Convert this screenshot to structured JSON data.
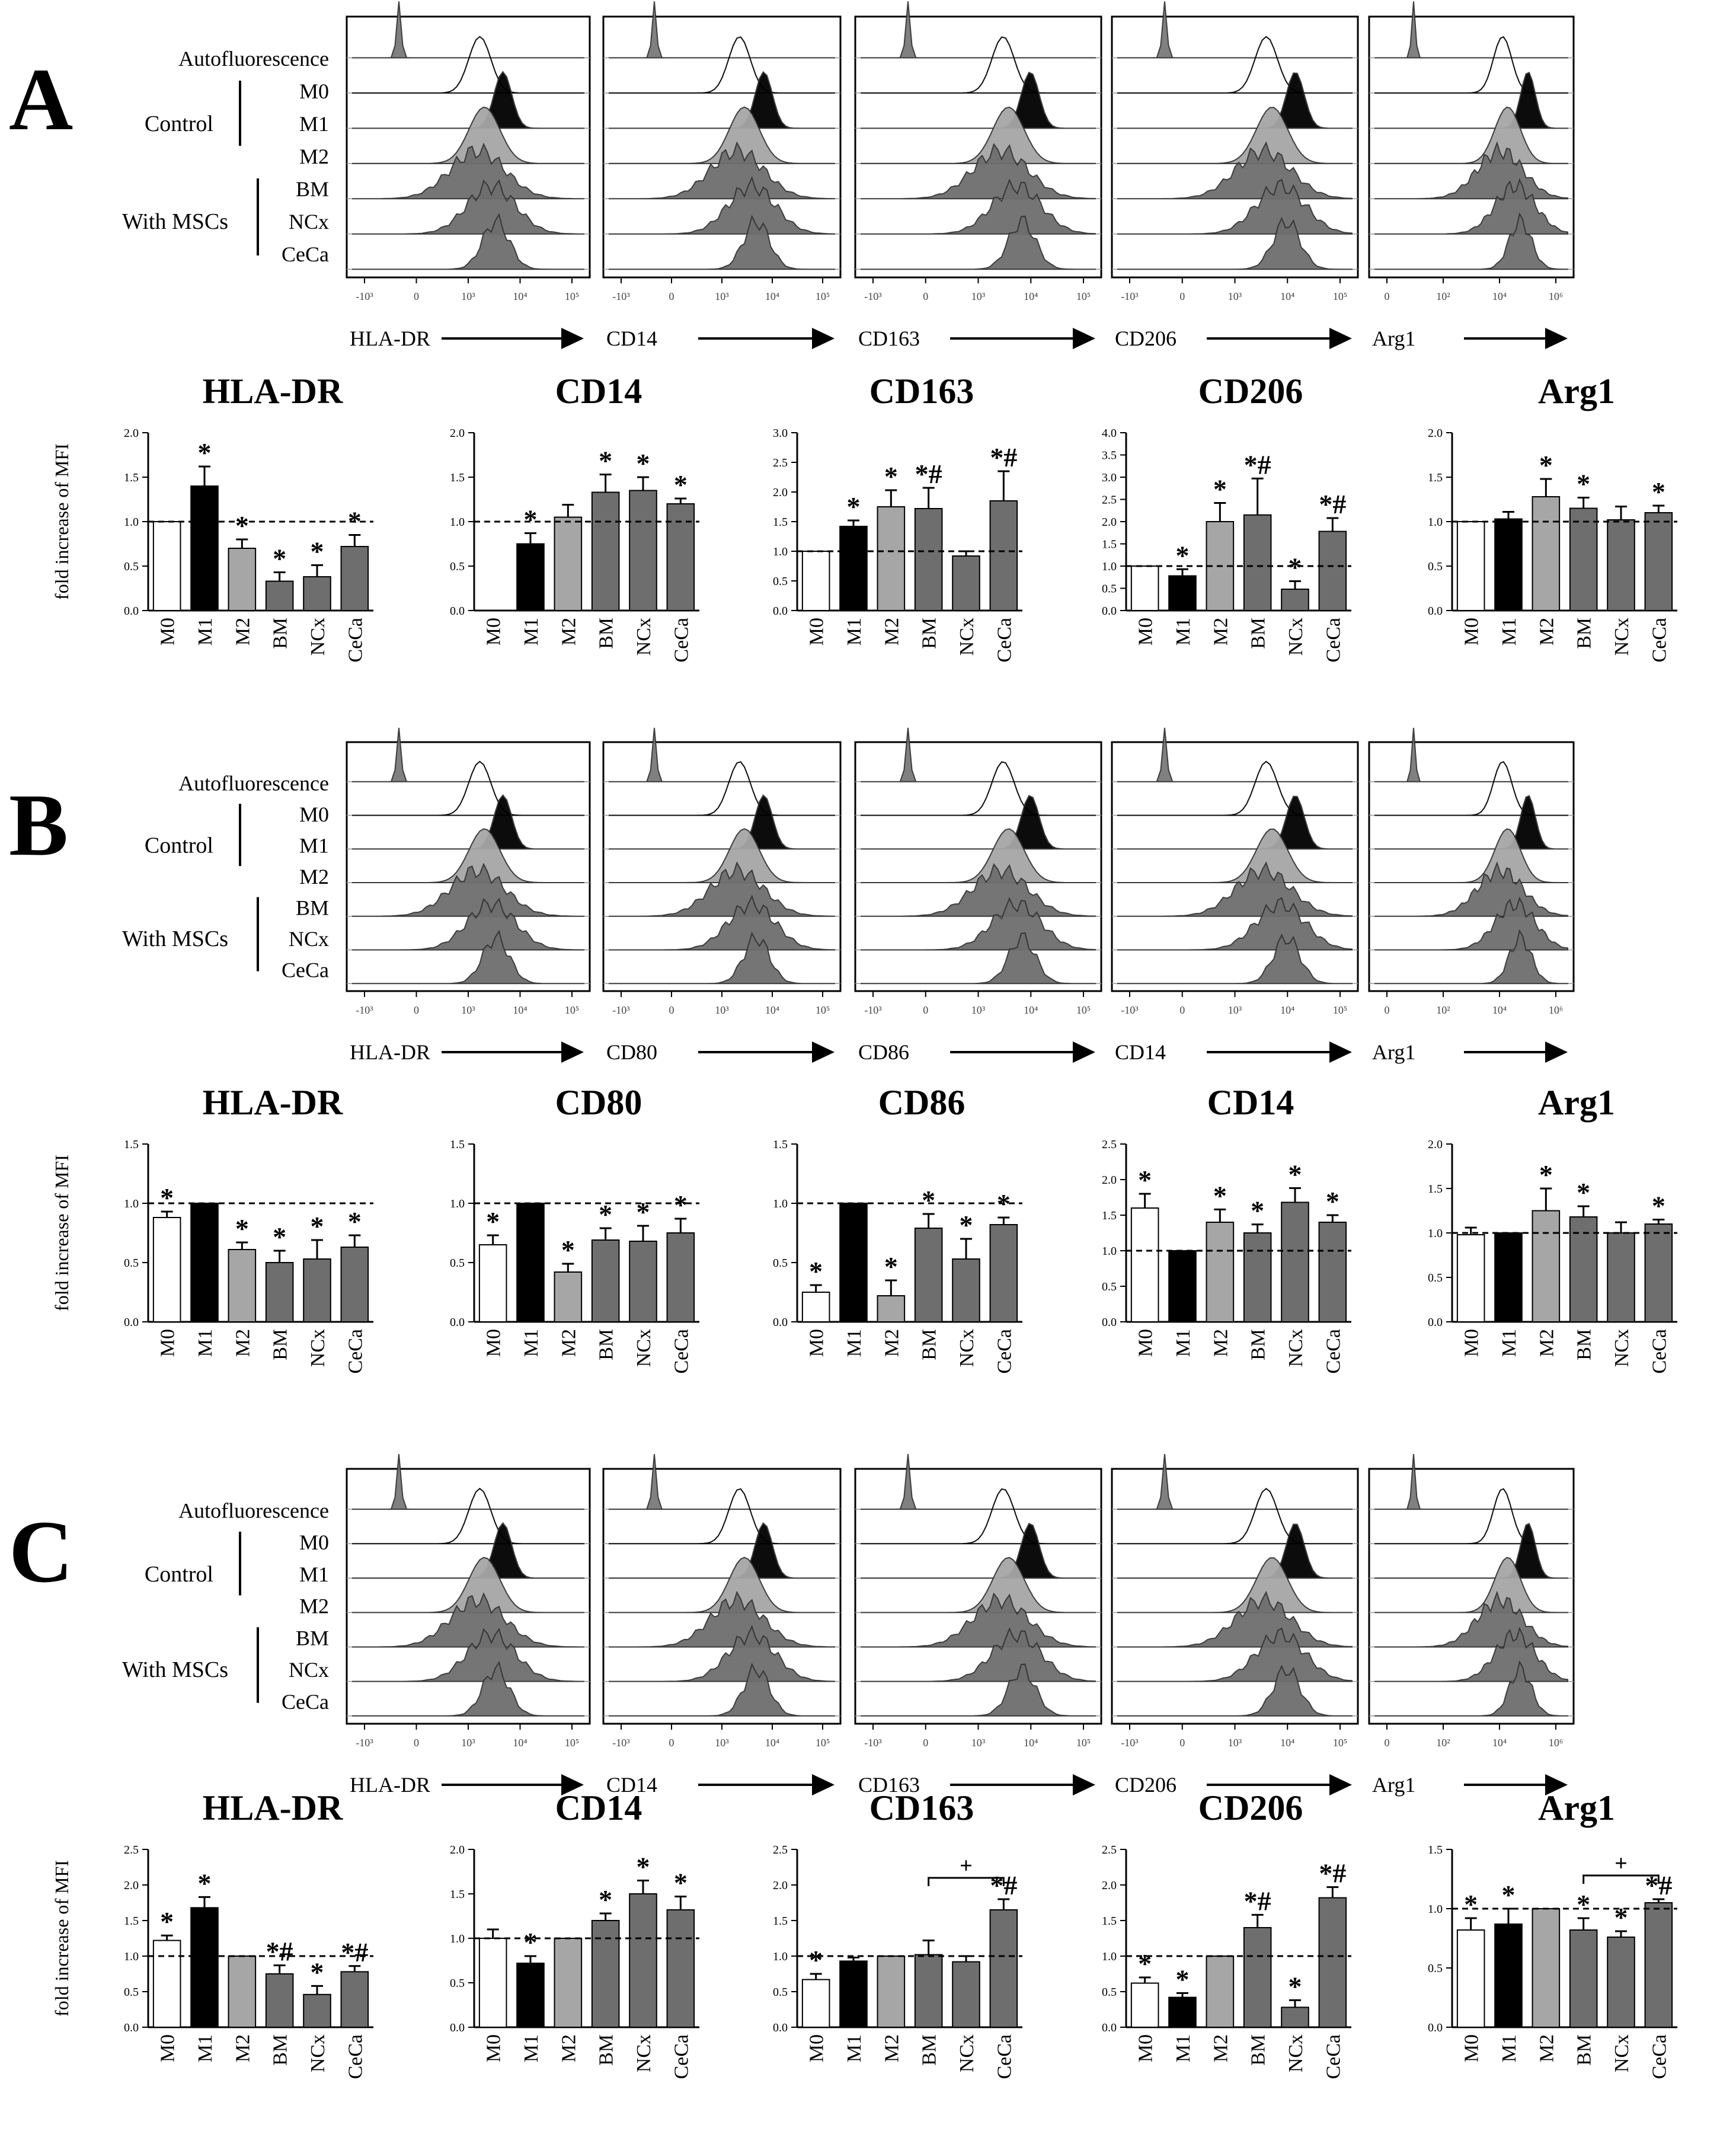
{
  "colors": {
    "M0": "#ffffff",
    "M1": "#000000",
    "M2": "#a6a6a6",
    "MSC": "#6e6e6e",
    "autofluorescence": "#7a7a7a",
    "axis": "#000000",
    "baseline": "#000000"
  },
  "panels": [
    {
      "label": "A",
      "row_labels": {
        "autofluorescence": "Autofluorescence",
        "control": "Control",
        "with_mscs": "With MSCs",
        "m0": "M0",
        "m1": "M1",
        "m2": "M2",
        "bm": "BM",
        "ncx": "NCx",
        "ceca": "CeCa"
      },
      "histograms": [
        {
          "marker": "HLA-DR",
          "ticks": [
            "-10³",
            "0",
            "10³",
            "10⁴",
            "10⁵"
          ]
        },
        {
          "marker": "CD14",
          "ticks": [
            "-10³",
            "0",
            "10³",
            "10⁴",
            "10⁵"
          ]
        },
        {
          "marker": "CD163",
          "ticks": [
            "-10³",
            "0",
            "10³",
            "10⁴",
            "10⁵"
          ]
        },
        {
          "marker": "CD206",
          "ticks": [
            "-10³",
            "0",
            "10³",
            "10⁴",
            "10⁵"
          ]
        },
        {
          "marker": "Arg1",
          "ticks": [
            "0",
            "10²",
            "10⁴",
            "10⁶"
          ]
        }
      ]
    },
    {
      "label": "B",
      "row_labels": {
        "autofluorescence": "Autofluorescence",
        "control": "Control",
        "with_mscs": "With MSCs",
        "m0": "M0",
        "m1": "M1",
        "m2": "M2",
        "bm": "BM",
        "ncx": "NCx",
        "ceca": "CeCa"
      },
      "histograms": [
        {
          "marker": "HLA-DR",
          "ticks": [
            "-10³",
            "0",
            "10³",
            "10⁴",
            "10⁵"
          ]
        },
        {
          "marker": "CD80",
          "ticks": [
            "-10³",
            "0",
            "10³",
            "10⁴",
            "10⁵"
          ]
        },
        {
          "marker": "CD86",
          "ticks": [
            "-10³",
            "0",
            "10³",
            "10⁴",
            "10⁵"
          ]
        },
        {
          "marker": "CD14",
          "ticks": [
            "-10³",
            "0",
            "10³",
            "10⁴",
            "10⁵"
          ]
        },
        {
          "marker": "Arg1",
          "ticks": [
            "0",
            "10²",
            "10⁴",
            "10⁶"
          ]
        }
      ]
    },
    {
      "label": "C",
      "row_labels": {
        "autofluorescence": "Autofluorescence",
        "control": "Control",
        "with_mscs": "With MSCs",
        "m0": "M0",
        "m1": "M1",
        "m2": "M2",
        "bm": "BM",
        "ncx": "NCx",
        "ceca": "CeCa"
      },
      "histograms": [
        {
          "marker": "HLA-DR",
          "ticks": [
            "-10³",
            "0",
            "10³",
            "10⁴",
            "10⁵"
          ]
        },
        {
          "marker": "CD14",
          "ticks": [
            "-10³",
            "0",
            "10³",
            "10⁴",
            "10⁵"
          ]
        },
        {
          "marker": "CD163",
          "ticks": [
            "-10³",
            "0",
            "10³",
            "10⁴",
            "10⁵"
          ]
        },
        {
          "marker": "CD206",
          "ticks": [
            "-10³",
            "0",
            "10³",
            "10⁴",
            "10⁵"
          ]
        },
        {
          "marker": "Arg1",
          "ticks": [
            "0",
            "10²",
            "10⁴",
            "10⁶"
          ]
        }
      ]
    }
  ],
  "chart_data": [
    {
      "panel": "A",
      "type": "bar",
      "title": "HLA-DR",
      "ylabel": "fold increase of MFI",
      "categories": [
        "M0",
        "M1",
        "M2",
        "BM",
        "NCx",
        "CeCa"
      ],
      "values": [
        1.0,
        1.4,
        0.7,
        0.33,
        0.38,
        0.72
      ],
      "errors": [
        0,
        0.22,
        0.1,
        0.1,
        0.13,
        0.13
      ],
      "marks": [
        "",
        "*",
        "*",
        "*",
        "*",
        "*"
      ],
      "ylim": [
        0,
        2.0
      ],
      "yticks": [
        "0.0",
        "0.5",
        "1.0",
        "1.5",
        "2.0"
      ],
      "baseline": 1.0
    },
    {
      "panel": "A",
      "type": "bar",
      "title": "CD14",
      "ylabel": "",
      "categories": [
        "M0",
        "M1",
        "M2",
        "BM",
        "NCx",
        "CeCa"
      ],
      "values": [
        0.0,
        0.75,
        1.05,
        1.33,
        1.35,
        1.2
      ],
      "errors": [
        0,
        0.12,
        0.14,
        0.2,
        0.15,
        0.06
      ],
      "marks": [
        "",
        "*",
        "",
        "*",
        "*",
        "*"
      ],
      "ylim": [
        0,
        2.0
      ],
      "yticks": [
        "0.0",
        "0.5",
        "1.0",
        "1.5",
        "2.0"
      ],
      "baseline": 1.0
    },
    {
      "panel": "A",
      "type": "bar",
      "title": "CD163",
      "ylabel": "",
      "categories": [
        "M0",
        "M1",
        "M2",
        "BM",
        "NCx",
        "CeCa"
      ],
      "values": [
        1.0,
        1.42,
        1.75,
        1.72,
        0.92,
        1.85
      ],
      "errors": [
        0,
        0.1,
        0.28,
        0.35,
        0.08,
        0.5
      ],
      "marks": [
        "",
        "*",
        "*",
        "*#",
        "",
        "*#"
      ],
      "ylim": [
        0,
        3.0
      ],
      "yticks": [
        "0.0",
        "0.5",
        "1.0",
        "1.5",
        "2.0",
        "2.5",
        "3.0"
      ],
      "baseline": 1.0
    },
    {
      "panel": "A",
      "type": "bar",
      "title": "CD206",
      "ylabel": "",
      "categories": [
        "M0",
        "M1",
        "M2",
        "BM",
        "NCx",
        "CeCa"
      ],
      "values": [
        1.0,
        0.78,
        2.0,
        2.15,
        0.48,
        1.78
      ],
      "errors": [
        0,
        0.15,
        0.42,
        0.82,
        0.18,
        0.3
      ],
      "marks": [
        "",
        "*",
        "*",
        "*#",
        "*",
        "*#"
      ],
      "ylim": [
        0,
        4.0
      ],
      "yticks": [
        "0.0",
        "0.5",
        "1.0",
        "1.5",
        "2.0",
        "2.5",
        "3.0",
        "3.5",
        "4.0"
      ],
      "baseline": 1.0
    },
    {
      "panel": "A",
      "type": "bar",
      "title": "Arg1",
      "ylabel": "",
      "categories": [
        "M0",
        "M1",
        "M2",
        "BM",
        "NCx",
        "CeCa"
      ],
      "values": [
        1.0,
        1.03,
        1.28,
        1.15,
        1.02,
        1.1
      ],
      "errors": [
        0,
        0.08,
        0.2,
        0.12,
        0.15,
        0.08
      ],
      "marks": [
        "",
        "",
        "*",
        "*",
        "",
        "*"
      ],
      "ylim": [
        0,
        2.0
      ],
      "yticks": [
        "0.0",
        "0.5",
        "1.0",
        "1.5",
        "2.0"
      ],
      "baseline": 1.0
    },
    {
      "panel": "B",
      "type": "bar",
      "title": "HLA-DR",
      "ylabel": "fold increase of MFI",
      "categories": [
        "M0",
        "M1",
        "M2",
        "BM",
        "NCx",
        "CeCa"
      ],
      "values": [
        0.88,
        1.0,
        0.61,
        0.5,
        0.53,
        0.63
      ],
      "errors": [
        0.05,
        0,
        0.06,
        0.1,
        0.16,
        0.1
      ],
      "marks": [
        "*",
        "",
        "*",
        "*",
        "*",
        "*"
      ],
      "ylim": [
        0,
        1.5
      ],
      "yticks": [
        "0.0",
        "0.5",
        "1.0",
        "1.5"
      ],
      "baseline": 1.0
    },
    {
      "panel": "B",
      "type": "bar",
      "title": "CD80",
      "ylabel": "",
      "categories": [
        "M0",
        "M1",
        "M2",
        "BM",
        "NCx",
        "CeCa"
      ],
      "values": [
        0.65,
        1.0,
        0.42,
        0.69,
        0.68,
        0.75
      ],
      "errors": [
        0.08,
        0,
        0.07,
        0.1,
        0.13,
        0.12
      ],
      "marks": [
        "*",
        "",
        "*",
        "*",
        "*",
        "*"
      ],
      "ylim": [
        0,
        1.5
      ],
      "yticks": [
        "0.0",
        "0.5",
        "1.0",
        "1.5"
      ],
      "baseline": 1.0
    },
    {
      "panel": "B",
      "type": "bar",
      "title": "CD86",
      "ylabel": "",
      "categories": [
        "M0",
        "M1",
        "M2",
        "BM",
        "NCx",
        "CeCa"
      ],
      "values": [
        0.25,
        1.0,
        0.22,
        0.79,
        0.53,
        0.82
      ],
      "errors": [
        0.06,
        0,
        0.13,
        0.12,
        0.17,
        0.06
      ],
      "marks": [
        "*",
        "",
        "*",
        "*",
        "*",
        "*"
      ],
      "ylim": [
        0,
        1.5
      ],
      "yticks": [
        "0.0",
        "0.5",
        "1.0",
        "1.5"
      ],
      "baseline": 1.0
    },
    {
      "panel": "B",
      "type": "bar",
      "title": "CD14",
      "ylabel": "",
      "categories": [
        "M0",
        "M1",
        "M2",
        "BM",
        "NCx",
        "CeCa"
      ],
      "values": [
        1.6,
        1.0,
        1.4,
        1.25,
        1.68,
        1.4
      ],
      "errors": [
        0.2,
        0,
        0.18,
        0.12,
        0.2,
        0.1
      ],
      "marks": [
        "*",
        "",
        "*",
        "*",
        "*",
        "*"
      ],
      "ylim": [
        0,
        2.5
      ],
      "yticks": [
        "0.0",
        "0.5",
        "1.0",
        "1.5",
        "2.0",
        "2.5"
      ],
      "baseline": 1.0
    },
    {
      "panel": "B",
      "type": "bar",
      "title": "Arg1",
      "ylabel": "",
      "categories": [
        "M0",
        "M1",
        "M2",
        "BM",
        "NCx",
        "CeCa"
      ],
      "values": [
        0.98,
        1.0,
        1.25,
        1.18,
        1.0,
        1.1
      ],
      "errors": [
        0.08,
        0,
        0.25,
        0.12,
        0.12,
        0.05
      ],
      "marks": [
        "",
        "",
        "*",
        "*",
        "",
        "*"
      ],
      "ylim": [
        0,
        2.0
      ],
      "yticks": [
        "0.0",
        "0.5",
        "1.0",
        "1.5",
        "2.0"
      ],
      "baseline": 1.0
    },
    {
      "panel": "C",
      "type": "bar",
      "title": "HLA-DR",
      "ylabel": "fold increase of MFI",
      "categories": [
        "M0",
        "M1",
        "M2",
        "BM",
        "NCx",
        "CeCa"
      ],
      "values": [
        1.22,
        1.68,
        1.0,
        0.75,
        0.46,
        0.78
      ],
      "errors": [
        0.07,
        0.15,
        0,
        0.12,
        0.12,
        0.08
      ],
      "marks": [
        "*",
        "*",
        "",
        "*#",
        "*",
        "*#"
      ],
      "ylim": [
        0,
        2.5
      ],
      "yticks": [
        "0.0",
        "0.5",
        "1.0",
        "1.5",
        "2.0",
        "2.5"
      ],
      "baseline": 1.0
    },
    {
      "panel": "C",
      "type": "bar",
      "title": "CD14",
      "ylabel": "",
      "categories": [
        "M0",
        "M1",
        "M2",
        "BM",
        "NCx",
        "CeCa"
      ],
      "values": [
        1.0,
        0.72,
        1.0,
        1.2,
        1.5,
        1.32
      ],
      "errors": [
        0.1,
        0.08,
        0,
        0.08,
        0.15,
        0.15
      ],
      "marks": [
        "",
        "*",
        "",
        "*",
        "*",
        "*"
      ],
      "ylim": [
        0,
        2.0
      ],
      "yticks": [
        "0.0",
        "0.5",
        "1.0",
        "1.5",
        "2.0"
      ],
      "baseline": 1.0
    },
    {
      "panel": "C",
      "type": "bar",
      "title": "CD163",
      "ylabel": "",
      "categories": [
        "M0",
        "M1",
        "M2",
        "BM",
        "NCx",
        "CeCa"
      ],
      "values": [
        0.67,
        0.93,
        1.0,
        1.02,
        0.92,
        1.65
      ],
      "errors": [
        0.08,
        0.05,
        0,
        0.2,
        0.08,
        0.15
      ],
      "marks": [
        "*",
        "",
        "",
        "",
        "",
        "*#"
      ],
      "ylim": [
        0,
        2.5
      ],
      "yticks": [
        "0.0",
        "0.5",
        "1.0",
        "1.5",
        "2.0",
        "2.5"
      ],
      "baseline": 1.0,
      "bracket": {
        "from": "BM",
        "to": "CeCa",
        "y": 2.1,
        "label": "+"
      }
    },
    {
      "panel": "C",
      "type": "bar",
      "title": "CD206",
      "ylabel": "",
      "categories": [
        "M0",
        "M1",
        "M2",
        "BM",
        "NCx",
        "CeCa"
      ],
      "values": [
        0.62,
        0.42,
        1.0,
        1.4,
        0.28,
        1.82
      ],
      "errors": [
        0.08,
        0.06,
        0,
        0.18,
        0.1,
        0.15
      ],
      "marks": [
        "*",
        "*",
        "",
        "*#",
        "*",
        "*#"
      ],
      "ylim": [
        0,
        2.5
      ],
      "yticks": [
        "0.0",
        "0.5",
        "1.0",
        "1.5",
        "2.0",
        "2.5"
      ],
      "baseline": 1.0
    },
    {
      "panel": "C",
      "type": "bar",
      "title": "Arg1",
      "ylabel": "",
      "categories": [
        "M0",
        "M1",
        "M2",
        "BM",
        "NCx",
        "CeCa"
      ],
      "values": [
        0.82,
        0.87,
        1.0,
        0.82,
        0.76,
        1.05
      ],
      "errors": [
        0.1,
        0.13,
        0,
        0.1,
        0.05,
        0.03
      ],
      "marks": [
        "*",
        "*",
        "",
        "*",
        "*",
        "*#"
      ],
      "ylim": [
        0,
        1.5
      ],
      "yticks": [
        "0.0",
        "0.5",
        "1.0",
        "1.5"
      ],
      "baseline": 1.0,
      "bracket": {
        "from": "BM",
        "to": "CeCa",
        "y": 1.28,
        "label": "+"
      }
    }
  ]
}
